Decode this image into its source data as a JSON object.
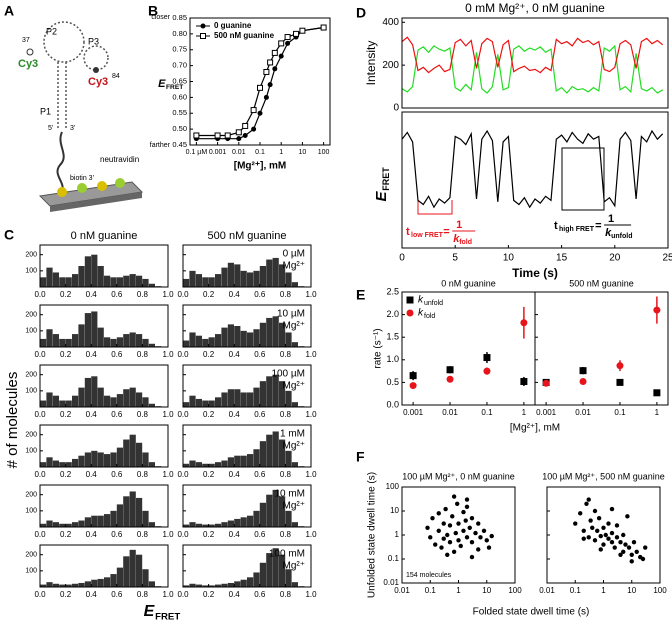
{
  "panel_labels": [
    "A",
    "B",
    "C",
    "D",
    "E",
    "F"
  ],
  "diagram": {
    "labels": {
      "p2": "P2",
      "p3": "P3",
      "p1": "P1",
      "cy3_left": "Cy3",
      "cy3_right": "Cy3",
      "n37": "37",
      "n84": "84",
      "neutravidin": "neutravidin",
      "biotin": "biotin 3'",
      "five": "5'",
      "three": "3'"
    }
  },
  "chart_data": [
    {
      "type": "line",
      "xlabel": "[Mg²⁺], mM",
      "ylabel": {
        "main": "E",
        "sub": "FRET"
      },
      "y_top_note": "closer",
      "y_bottom_note": "farther",
      "log_x": true,
      "xlim": [
        5e-05,
        200
      ],
      "xticks": [
        {
          "value": 0.0001,
          "label": "0.1 µM"
        },
        0.001,
        0.01,
        0.1,
        1,
        10,
        100
      ],
      "ylim": [
        0.45,
        0.85
      ],
      "yticks": [
        0.45,
        {
          "value": 0.5,
          "label": "0.50"
        },
        0.55,
        {
          "value": 0.6,
          "label": "0.60"
        },
        0.65,
        {
          "value": 0.7,
          "label": "0.70"
        },
        0.75,
        {
          "value": 0.8,
          "label": "0.80"
        },
        0.85
      ],
      "legend": "upper left",
      "x": [
        0.0001,
        0.001,
        0.003,
        0.01,
        0.02,
        0.05,
        0.1,
        0.2,
        0.3,
        0.5,
        1,
        2,
        5,
        10,
        100
      ],
      "series": [
        {
          "name": "0 guanine",
          "color": "#000000",
          "marker": "circle",
          "values": [
            0.47,
            0.47,
            0.47,
            0.47,
            0.48,
            0.5,
            0.55,
            0.6,
            0.64,
            0.69,
            0.73,
            0.77,
            0.79,
            0.81,
            0.82
          ]
        },
        {
          "name": "500 nM guanine",
          "color": "#000000",
          "marker": "square-open",
          "values": [
            0.48,
            0.48,
            0.48,
            0.49,
            0.51,
            0.56,
            0.63,
            0.68,
            0.71,
            0.74,
            0.77,
            0.79,
            0.8,
            0.81,
            0.82
          ]
        }
      ]
    },
    {
      "type": "line",
      "title": "0 mM Mg²⁺, 0 nM guanine",
      "ylabel": "Intensity",
      "xlim": [
        0,
        25
      ],
      "ylim": [
        0,
        420
      ],
      "yticks": [
        0,
        200,
        400
      ],
      "x": [
        0,
        0.5,
        1,
        1.5,
        2,
        2.5,
        3,
        3.5,
        4,
        4.5,
        5,
        5.5,
        6,
        6.5,
        7,
        7.5,
        8,
        8.5,
        9,
        9.5,
        10,
        10.5,
        11,
        11.5,
        12,
        12.5,
        13,
        13.5,
        14,
        14.5,
        15,
        15.5,
        16,
        16.5,
        17,
        17.5,
        18,
        18.5,
        19,
        19.5,
        20,
        20.5,
        21,
        21.5,
        22,
        22.5,
        23,
        23.5,
        24,
        24.5
      ],
      "series": [
        {
          "color": "#22dd22",
          "values": [
            90,
            75,
            100,
            270,
            285,
            260,
            290,
            275,
            265,
            280,
            95,
            80,
            110,
            85,
            260,
            90,
            70,
            100,
            250,
            85,
            95,
            275,
            290,
            265,
            280,
            270,
            285,
            260,
            275,
            80,
            95,
            70,
            100,
            85,
            90,
            75,
            95,
            80,
            280,
            265,
            290,
            85,
            100,
            75,
            255,
            90,
            80,
            95,
            70,
            85
          ]
        },
        {
          "color": "#ee1111",
          "values": [
            310,
            330,
            295,
            175,
            190,
            165,
            185,
            200,
            170,
            180,
            305,
            320,
            290,
            315,
            185,
            300,
            325,
            310,
            190,
            295,
            315,
            170,
            185,
            195,
            175,
            180,
            165,
            190,
            175,
            320,
            300,
            310,
            290,
            325,
            305,
            315,
            295,
            310,
            180,
            170,
            190,
            300,
            315,
            295,
            185,
            310,
            325,
            300,
            315,
            295
          ]
        }
      ]
    },
    {
      "type": "line",
      "ylabel": {
        "main": "E",
        "sub": "FRET"
      },
      "xlabel": "Time (s)",
      "xlim": [
        0,
        25
      ],
      "ylim": [
        0,
        1
      ],
      "xticks": [
        0,
        5,
        10,
        15,
        20,
        25
      ],
      "x": [
        0,
        0.5,
        1,
        1.5,
        2,
        2.5,
        3,
        3.5,
        4,
        4.5,
        5,
        5.5,
        6,
        6.5,
        7,
        7.5,
        8,
        8.5,
        9,
        9.5,
        10,
        10.5,
        11,
        11.5,
        12,
        12.5,
        13,
        13.5,
        14,
        14.5,
        15,
        15.5,
        16,
        16.5,
        17,
        17.5,
        18,
        18.5,
        19,
        19.5,
        20,
        20.5,
        21,
        21.5,
        22,
        22.5,
        23,
        23.5,
        24,
        24.5
      ],
      "series": [
        {
          "color": "#000000",
          "values": [
            0.8,
            0.85,
            0.78,
            0.35,
            0.32,
            0.38,
            0.3,
            0.36,
            0.33,
            0.37,
            0.82,
            0.8,
            0.76,
            0.84,
            0.36,
            0.8,
            0.86,
            0.79,
            0.34,
            0.78,
            0.82,
            0.35,
            0.32,
            0.37,
            0.3,
            0.36,
            0.33,
            0.38,
            0.35,
            0.8,
            0.83,
            0.78,
            0.85,
            0.8,
            0.77,
            0.84,
            0.8,
            0.82,
            0.34,
            0.37,
            0.31,
            0.8,
            0.85,
            0.79,
            0.36,
            0.82,
            0.78,
            0.86,
            0.8,
            0.84
          ]
        }
      ],
      "annotations": [
        {
          "t": "t",
          "sub": "low FRET",
          "eq": "=",
          "num": "1",
          "k": "k",
          "ksub": "fold",
          "color": "#e8141b"
        },
        {
          "t": "t",
          "sub": "high FRET",
          "eq": "=",
          "num": "1",
          "k": "k",
          "ksub": "unfold",
          "color": "#000000"
        }
      ]
    },
    {
      "type": "histogram-grid",
      "column_titles": [
        "0 nM guanine",
        "500 nM guanine"
      ],
      "ylabel": "# of molecules",
      "xlabel": {
        "main": "E",
        "sub": "FRET"
      },
      "color": "#333333",
      "xlim": [
        0,
        1
      ],
      "ylim": [
        0,
        260
      ],
      "yticks": [
        100,
        200
      ],
      "xticks": [
        {
          "value": 0,
          "label": "0.0"
        },
        0.2,
        0.4,
        0.6,
        0.8,
        {
          "value": 1,
          "label": "1.0"
        }
      ],
      "bins": [
        0,
        0.05,
        0.1,
        0.15,
        0.2,
        0.25,
        0.3,
        0.35,
        0.4,
        0.45,
        0.5,
        0.55,
        0.6,
        0.65,
        0.7,
        0.75,
        0.8,
        0.85,
        0.9,
        0.95,
        1
      ],
      "panels": [
        {
          "counts": [
            60,
            120,
            90,
            60,
            60,
            80,
            130,
            190,
            200,
            130,
            70,
            60,
            60,
            70,
            80,
            70,
            50,
            20,
            5,
            2
          ]
        },
        {
          "counts": [
            50,
            100,
            80,
            60,
            60,
            80,
            120,
            150,
            140,
            100,
            90,
            100,
            130,
            170,
            180,
            140,
            90,
            30,
            5,
            2
          ],
          "annotation": [
            "0 µM",
            "Mg²⁺"
          ]
        },
        {
          "counts": [
            50,
            110,
            80,
            50,
            50,
            80,
            140,
            210,
            220,
            120,
            60,
            50,
            60,
            80,
            90,
            80,
            50,
            20,
            5,
            2
          ]
        },
        {
          "counts": [
            40,
            90,
            70,
            50,
            60,
            80,
            120,
            140,
            130,
            100,
            90,
            110,
            150,
            180,
            190,
            150,
            90,
            30,
            5,
            2
          ],
          "annotation": [
            "10 µM",
            "Mg²⁺"
          ]
        },
        {
          "counts": [
            40,
            90,
            70,
            40,
            40,
            70,
            120,
            180,
            190,
            120,
            70,
            60,
            80,
            110,
            120,
            90,
            60,
            20,
            5,
            2
          ]
        },
        {
          "counts": [
            30,
            70,
            50,
            40,
            40,
            60,
            90,
            110,
            110,
            90,
            90,
            120,
            160,
            190,
            200,
            160,
            100,
            30,
            5,
            2
          ],
          "annotation": [
            "100 µM",
            "Mg²⁺"
          ]
        },
        {
          "counts": [
            30,
            60,
            40,
            30,
            30,
            50,
            70,
            90,
            100,
            90,
            80,
            90,
            120,
            170,
            200,
            150,
            90,
            30,
            5,
            1
          ]
        },
        {
          "counts": [
            20,
            40,
            30,
            20,
            20,
            30,
            40,
            60,
            70,
            70,
            80,
            110,
            160,
            200,
            220,
            170,
            100,
            30,
            5,
            1
          ],
          "annotation": [
            "1 mM",
            "Mg²⁺"
          ]
        },
        {
          "counts": [
            20,
            40,
            30,
            20,
            20,
            30,
            40,
            60,
            70,
            70,
            80,
            100,
            140,
            190,
            220,
            180,
            100,
            30,
            5,
            1
          ]
        },
        {
          "counts": [
            15,
            30,
            20,
            15,
            15,
            20,
            30,
            40,
            50,
            60,
            70,
            100,
            150,
            200,
            230,
            190,
            100,
            30,
            5,
            1
          ],
          "annotation": [
            "10 mM",
            "Mg²⁺"
          ]
        },
        {
          "counts": [
            15,
            30,
            20,
            15,
            15,
            20,
            25,
            35,
            45,
            50,
            60,
            80,
            120,
            190,
            230,
            200,
            110,
            35,
            5,
            1
          ]
        },
        {
          "counts": [
            10,
            20,
            15,
            10,
            10,
            15,
            20,
            25,
            35,
            45,
            60,
            90,
            150,
            210,
            240,
            200,
            110,
            30,
            5,
            1
          ],
          "annotation": [
            "100 mM",
            "Mg²⁺"
          ]
        }
      ]
    },
    {
      "type": "errorbar",
      "ylabel": "rate (s⁻¹)",
      "xlabel": "[Mg²⁺], mM",
      "log_x": true,
      "xlim": [
        0.0005,
        2
      ],
      "xticks": [
        0.001,
        0.01,
        0.1,
        1
      ],
      "ylim": [
        0,
        2.5
      ],
      "yticks": [
        {
          "value": 0,
          "label": "0.0"
        },
        0.5,
        {
          "value": 1,
          "label": "1.0"
        },
        1.5,
        {
          "value": 2,
          "label": "2.0"
        },
        2.5
      ],
      "legend": "upper left",
      "x": [
        0.001,
        0.01,
        0.1,
        1
      ],
      "series_style": [
        {
          "name": "k",
          "name_sub": "unfold",
          "color": "#000000",
          "marker": "square"
        },
        {
          "name": "k",
          "name_sub": "fold",
          "color": "#e8141b",
          "marker": "circle"
        }
      ],
      "facets": [
        {
          "title": "0 nM guanine",
          "series": [
            {
              "values": [
                0.65,
                0.78,
                1.05,
                0.52
              ],
              "errors": [
                0.1,
                0.08,
                0.12,
                0.1
              ]
            },
            {
              "values": [
                0.43,
                0.57,
                0.75,
                1.82
              ],
              "errors": [
                0.05,
                0.06,
                0.08,
                0.35
              ]
            }
          ]
        },
        {
          "title": "500 nM guanine",
          "series": [
            {
              "values": [
                0.5,
                0.76,
                0.5,
                0.27
              ],
              "errors": [
                0.05,
                0.08,
                0.05,
                0.03
              ]
            },
            {
              "values": [
                0.48,
                0.52,
                0.87,
                2.1
              ],
              "errors": [
                0.05,
                0.06,
                0.12,
                0.3
              ]
            }
          ]
        }
      ]
    },
    {
      "type": "scatter",
      "log_x": true,
      "log_y": true,
      "xlim": [
        0.01,
        100
      ],
      "ylim": [
        0.01,
        100
      ],
      "xticks": [
        0.01,
        0.1,
        1,
        10,
        100
      ],
      "yticks": [
        0.01,
        0.1,
        1,
        10,
        100
      ],
      "xlabel": "Folded state dwell time (s)",
      "ylabel": "Unfolded state dwell time (s)",
      "color": "#000000",
      "panels": [
        {
          "title": "100 µM Mg²⁺, 0 nM guanine",
          "annotation": "154 molecules",
          "x": [
            0.08,
            0.1,
            0.12,
            0.15,
            0.2,
            0.2,
            0.25,
            0.3,
            0.3,
            0.35,
            0.4,
            0.5,
            0.5,
            0.6,
            0.7,
            0.8,
            0.9,
            1,
            1,
            1.2,
            1.5,
            1.5,
            2,
            2,
            2.5,
            3,
            3,
            4,
            5,
            5,
            6,
            8,
            10,
            12,
            15,
            2,
            0.4,
            0.7,
            3,
            1.8
          ],
          "y": [
            2,
            0.8,
            5,
            0.4,
            1.5,
            8,
            0.3,
            3,
            0.7,
            12,
            1,
            0.5,
            2.5,
            6,
            0.2,
            1.2,
            20,
            0.6,
            3,
            0.35,
            1.5,
            9,
            0.8,
            30,
            2,
            0.5,
            5,
            1.2,
            0.25,
            3,
            0.8,
            1.5,
            0.6,
            0.3,
            0.9,
            15,
            0.15,
            40,
            0.12,
            4
          ]
        },
        {
          "title": "100 µM Mg²⁺, 500 nM guanine",
          "x": [
            0.1,
            0.15,
            0.2,
            0.25,
            0.3,
            0.35,
            0.4,
            0.5,
            0.5,
            0.6,
            0.7,
            0.8,
            1,
            1,
            1.2,
            1.5,
            2,
            2,
            2.5,
            3,
            3,
            4,
            5,
            5,
            6,
            8,
            10,
            12,
            15,
            20,
            25,
            30,
            0.3,
            0.8,
            1.5,
            4,
            7,
            0.2,
            2,
            10
          ],
          "y": [
            3,
            8,
            1.5,
            20,
            0.8,
            4,
            2,
            10,
            0.6,
            1.5,
            5,
            0.9,
            2,
            0.4,
            1,
            3,
            0.5,
            1.2,
            0.3,
            0.8,
            2.5,
            0.5,
            0.2,
            1,
            0.4,
            0.3,
            0.15,
            0.5,
            0.2,
            0.12,
            0.1,
            0.3,
            30,
            0.25,
            0.7,
            0.15,
            6,
            0.7,
            12,
            0.08
          ]
        }
      ]
    }
  ]
}
